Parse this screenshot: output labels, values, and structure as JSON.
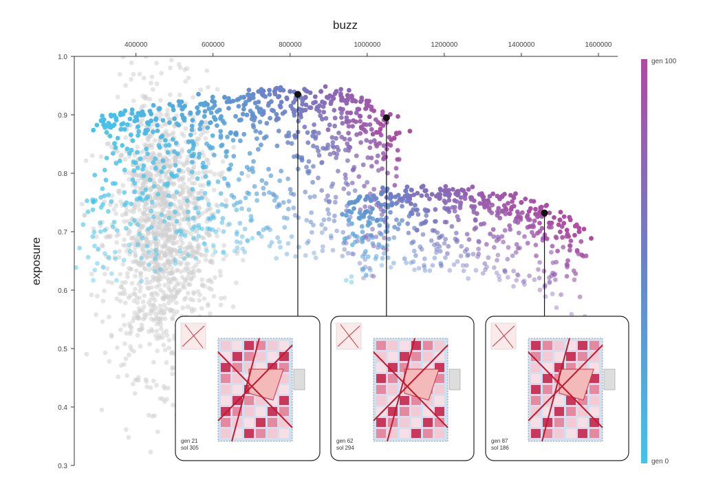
{
  "chart_data": {
    "type": "scatter",
    "xlabel": "buzz",
    "ylabel": "exposure",
    "xlim": [
      240000,
      1650000
    ],
    "ylim": [
      0.3,
      1.0
    ],
    "x_ticks": [
      400000,
      600000,
      800000,
      1000000,
      1200000,
      1400000,
      1600000
    ],
    "x_tick_labels": [
      "400000",
      "600000",
      "800000",
      "1000000",
      "1200000",
      "1400000",
      "1600000"
    ],
    "y_ticks": [
      0.3,
      0.4,
      0.5,
      0.6,
      0.7,
      0.8,
      0.9,
      1.0
    ],
    "y_tick_labels": [
      "0.3",
      "0.4",
      "0.5",
      "0.6",
      "0.7",
      "0.8",
      "0.9",
      "1.0"
    ],
    "x_axis_position": "top",
    "grid": false,
    "colorbar": {
      "min_label": "gen 0",
      "max_label": "gen 100",
      "min_color": "#45c3e8",
      "max_color": "#b04aa0"
    },
    "background_cloud": {
      "color": "#d0d0d0",
      "description_center": [
        470000,
        0.7
      ],
      "spread": [
        70000,
        0.12
      ]
    },
    "series": [
      {
        "x": [
          310000,
          360000,
          420000,
          460000,
          520000,
          580000,
          630000,
          680000,
          720000,
          760000,
          800000,
          840000,
          880000,
          920000,
          960000,
          1000000,
          1040000,
          1070000
        ],
        "y": [
          0.89,
          0.9,
          0.9,
          0.91,
          0.91,
          0.92,
          0.93,
          0.93,
          0.94,
          0.94,
          0.94,
          0.93,
          0.94,
          0.94,
          0.93,
          0.92,
          0.9,
          0.86
        ],
        "generation": [
          2,
          5,
          10,
          15,
          20,
          25,
          32,
          40,
          46,
          52,
          58,
          64,
          70,
          76,
          82,
          88,
          93,
          98
        ]
      },
      {
        "x": [
          960000,
          1000000,
          1050000,
          1100000,
          1150000,
          1200000,
          1250000,
          1300000,
          1350000,
          1400000,
          1450000,
          1500000,
          1550000
        ],
        "y": [
          0.75,
          0.76,
          0.77,
          0.77,
          0.77,
          0.77,
          0.77,
          0.76,
          0.76,
          0.75,
          0.74,
          0.72,
          0.7
        ],
        "generation": [
          30,
          40,
          50,
          60,
          68,
          74,
          80,
          86,
          90,
          94,
          96,
          98,
          100
        ]
      }
    ],
    "annotations": [
      {
        "x": 820000,
        "y": 0.935,
        "label_gen": "gen 21",
        "label_sol": "sol 305"
      },
      {
        "x": 1050000,
        "y": 0.895,
        "label_gen": "gen 62",
        "label_sol": "sol 294"
      },
      {
        "x": 1460000,
        "y": 0.732,
        "label_gen": "gen 87",
        "label_sol": "sol 186"
      }
    ]
  }
}
